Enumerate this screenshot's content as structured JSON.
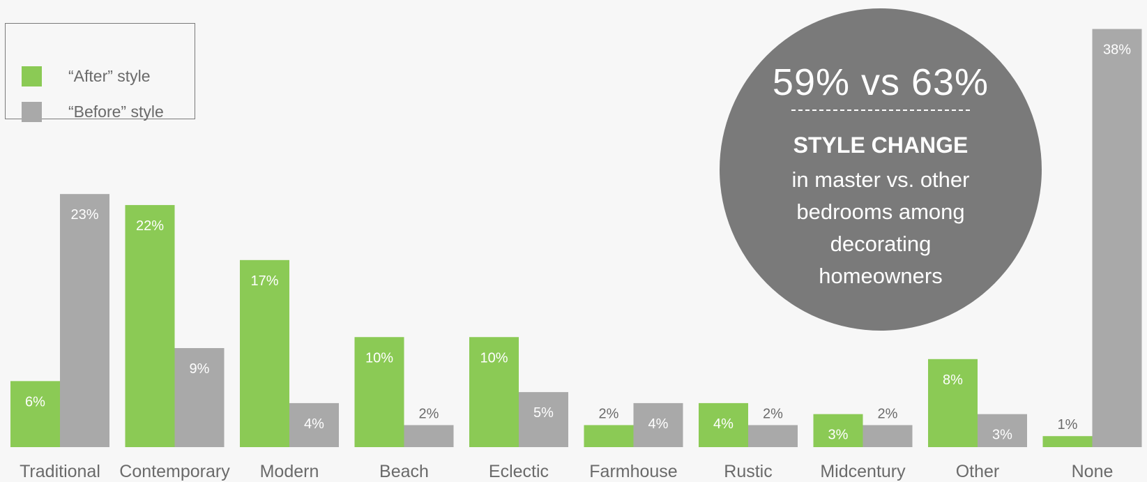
{
  "colors": {
    "after": "#8bca55",
    "before": "#a9a9a9",
    "background": "#f7f7f7",
    "callout": "#7a7a7a",
    "text": "#6a6a6a"
  },
  "legend": {
    "position": "top-left",
    "items": [
      {
        "label": "“After” style",
        "color": "#8bca55"
      },
      {
        "label": "“Before” style",
        "color": "#a9a9a9"
      }
    ]
  },
  "callout": {
    "big": "59% vs 63%",
    "headline": "STYLE CHANGE",
    "desc": "in master vs. other bedrooms among decorating homeowners"
  },
  "chart_data": {
    "type": "bar",
    "grid": false,
    "ylim": [
      0,
      40
    ],
    "categories": [
      "Traditional",
      "Contemporary",
      "Modern",
      "Beach",
      "Eclectic",
      "Farmhouse",
      "Rustic",
      "Midcentury",
      "Other",
      "None"
    ],
    "series": [
      {
        "name": "“After” style",
        "values": [
          6,
          22,
          17,
          10,
          10,
          2,
          4,
          3,
          8,
          1
        ],
        "labels": [
          "6%",
          "22%",
          "17%",
          "10%",
          "10%",
          "2%",
          "4%",
          "3%",
          "8%",
          "1%"
        ]
      },
      {
        "name": "“Before” style",
        "values": [
          23,
          9,
          4,
          2,
          5,
          4,
          2,
          2,
          3,
          38
        ],
        "labels": [
          "23%",
          "9%",
          "4%",
          "2%",
          "5%",
          "4%",
          "2%",
          "2%",
          "3%",
          "38%"
        ]
      }
    ]
  }
}
